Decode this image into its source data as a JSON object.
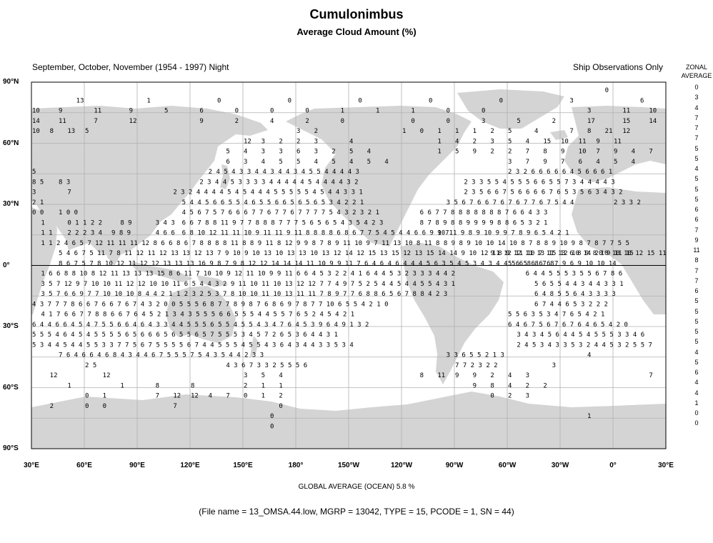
{
  "header": {
    "title": "Cumulonimbus",
    "subtitle": "Average Cloud Amount (%)",
    "season": "September, October, November (1954 - 1997) Night",
    "source": "Ship Observations Only"
  },
  "zonal": {
    "heading_1": "ZONAL",
    "heading_2": "AVERAGE",
    "values": [
      "0",
      "3",
      "4",
      "7",
      "7",
      "7",
      "5",
      "5",
      "4",
      "5",
      "5",
      "5",
      "6",
      "6",
      "7",
      "9",
      "11",
      "8",
      "7",
      "7",
      "6",
      "5",
      "5",
      "5",
      "5",
      "5",
      "4",
      "5",
      "6",
      "4",
      "4",
      "1",
      "0",
      "0"
    ]
  },
  "axes": {
    "lat_labels": [
      "90°N",
      "60°N",
      "30°N",
      "0°",
      "30°S",
      "60°S",
      "90°S"
    ],
    "lon_labels": [
      "30°E",
      "60°E",
      "90°E",
      "120°E",
      "150°E",
      "180°",
      "150°W",
      "120°W",
      "90°W",
      "60°W",
      "30°W",
      "0°",
      "30°E"
    ]
  },
  "footer": {
    "global_average": "GLOBAL AVERAGE (OCEAN)   5.8 %",
    "file_info": "(File name = 13_OMSA.44.low, MGRP = 13042, TYPE = 15, PCODE = 1, SN = 44)"
  },
  "colors": {
    "land": "#d4d4d4",
    "grid": "#b0b0b0",
    "frame": "#000000"
  },
  "grid_values": [
    {
      "row": 0,
      "text": "0",
      "col": 65
    },
    {
      "row": 1,
      "text": "13",
      "col": 5
    },
    {
      "row": 1,
      "text": "1",
      "col": 13
    },
    {
      "row": 1,
      "text": "0",
      "col": 21
    },
    {
      "row": 1,
      "text": "0",
      "col": 29
    },
    {
      "row": 1,
      "text": "0",
      "col": 37
    },
    {
      "row": 1,
      "text": "0",
      "col": 45
    },
    {
      "row": 1,
      "text": "0",
      "col": 53
    },
    {
      "row": 1,
      "text": "3",
      "col": 61
    },
    {
      "row": 1,
      "text": "6",
      "col": 69
    },
    {
      "row": 2,
      "text": "10",
      "col": 0
    },
    {
      "row": 2,
      "text": "9",
      "col": 3
    },
    {
      "row": 2,
      "text": "11",
      "col": 7
    },
    {
      "row": 2,
      "text": "9",
      "col": 11
    },
    {
      "row": 2,
      "text": "5",
      "col": 15
    },
    {
      "row": 2,
      "text": "6",
      "col": 19
    },
    {
      "row": 2,
      "text": "0",
      "col": 23
    },
    {
      "row": 2,
      "text": "0",
      "col": 27
    },
    {
      "row": 2,
      "text": "0",
      "col": 31
    },
    {
      "row": 2,
      "text": "1",
      "col": 35
    },
    {
      "row": 2,
      "text": "1",
      "col": 39
    },
    {
      "row": 2,
      "text": "1",
      "col": 43
    },
    {
      "row": 2,
      "text": "0",
      "col": 47
    },
    {
      "row": 2,
      "text": "0",
      "col": 51
    },
    {
      "row": 2,
      "text": "3",
      "col": 63
    },
    {
      "row": 2,
      "text": "11",
      "col": 67
    },
    {
      "row": 2,
      "text": "10",
      "col": 70
    },
    {
      "row": 3,
      "text": "14",
      "col": 0
    },
    {
      "row": 3,
      "text": "11",
      "col": 3
    },
    {
      "row": 3,
      "text": "7",
      "col": 7
    },
    {
      "row": 3,
      "text": "12",
      "col": 11
    },
    {
      "row": 3,
      "text": "9",
      "col": 19
    },
    {
      "row": 3,
      "text": "2",
      "col": 23
    },
    {
      "row": 3,
      "text": "4",
      "col": 27
    },
    {
      "row": 3,
      "text": "2",
      "col": 31
    },
    {
      "row": 3,
      "text": "0",
      "col": 35
    },
    {
      "row": 3,
      "text": "0",
      "col": 43
    },
    {
      "row": 3,
      "text": "0",
      "col": 47
    },
    {
      "row": 3,
      "text": "3",
      "col": 51
    },
    {
      "row": 3,
      "text": "5",
      "col": 55
    },
    {
      "row": 3,
      "text": "2",
      "col": 59
    },
    {
      "row": 3,
      "text": "17",
      "col": 63
    },
    {
      "row": 3,
      "text": "15",
      "col": 67
    },
    {
      "row": 3,
      "text": "14",
      "col": 70
    },
    {
      "row": 4,
      "text": "10",
      "col": 0
    },
    {
      "row": 4,
      "text": "8",
      "col": 2
    },
    {
      "row": 4,
      "text": "13",
      "col": 4
    },
    {
      "row": 4,
      "text": "5",
      "col": 6
    },
    {
      "row": 4,
      "text": "3",
      "col": 30
    },
    {
      "row": 4,
      "text": "2",
      "col": 32
    },
    {
      "row": 4,
      "text": "1",
      "col": 42
    },
    {
      "row": 4,
      "text": "0",
      "col": 44
    },
    {
      "row": 4,
      "text": "1",
      "col": 46
    },
    {
      "row": 4,
      "text": "1",
      "col": 48
    },
    {
      "row": 4,
      "text": "1",
      "col": 50
    },
    {
      "row": 4,
      "text": "2",
      "col": 52
    },
    {
      "row": 4,
      "text": "5",
      "col": 54
    },
    {
      "row": 4,
      "text": "4",
      "col": 57
    },
    {
      "row": 4,
      "text": "7",
      "col": 61
    },
    {
      "row": 4,
      "text": "8",
      "col": 63
    },
    {
      "row": 4,
      "text": "21",
      "col": 65
    },
    {
      "row": 4,
      "text": "12",
      "col": 67
    },
    {
      "row": 5,
      "text": "12",
      "col": 24
    },
    {
      "row": 5,
      "text": "3",
      "col": 26
    },
    {
      "row": 5,
      "text": "2",
      "col": 28
    },
    {
      "row": 5,
      "text": "2",
      "col": 30
    },
    {
      "row": 5,
      "text": "3",
      "col": 32
    },
    {
      "row": 5,
      "text": "4",
      "col": 36
    },
    {
      "row": 5,
      "text": "1",
      "col": 46
    },
    {
      "row": 5,
      "text": "4",
      "col": 48
    },
    {
      "row": 5,
      "text": "2",
      "col": 50
    },
    {
      "row": 5,
      "text": "3",
      "col": 52
    },
    {
      "row": 5,
      "text": "5",
      "col": 54
    },
    {
      "row": 5,
      "text": "4",
      "col": 56
    },
    {
      "row": 5,
      "text": "15",
      "col": 58
    },
    {
      "row": 5,
      "text": "10",
      "col": 60
    },
    {
      "row": 5,
      "text": "11",
      "col": 62
    },
    {
      "row": 5,
      "text": "9",
      "col": 64
    },
    {
      "row": 5,
      "text": "11",
      "col": 66
    },
    {
      "row": 6,
      "text": "5",
      "col": 22
    },
    {
      "row": 6,
      "text": "4",
      "col": 24
    },
    {
      "row": 6,
      "text": "3",
      "col": 26
    },
    {
      "row": 6,
      "text": "3",
      "col": 28
    },
    {
      "row": 6,
      "text": "6",
      "col": 30
    },
    {
      "row": 6,
      "text": "3",
      "col": 32
    },
    {
      "row": 6,
      "text": "2",
      "col": 34
    },
    {
      "row": 6,
      "text": "5",
      "col": 36
    },
    {
      "row": 6,
      "text": "4",
      "col": 38
    },
    {
      "row": 6,
      "text": "1",
      "col": 46
    },
    {
      "row": 6,
      "text": "5",
      "col": 48
    },
    {
      "row": 6,
      "text": "9",
      "col": 50
    },
    {
      "row": 6,
      "text": "2",
      "col": 52
    },
    {
      "row": 6,
      "text": "2",
      "col": 54
    },
    {
      "row": 6,
      "text": "7",
      "col": 56
    },
    {
      "row": 6,
      "text": "8",
      "col": 58
    },
    {
      "row": 6,
      "text": "9",
      "col": 60
    },
    {
      "row": 6,
      "text": "10",
      "col": 62
    },
    {
      "row": 6,
      "text": "7",
      "col": 64
    },
    {
      "row": 6,
      "text": "9",
      "col": 66
    },
    {
      "row": 6,
      "text": "4",
      "col": 68
    },
    {
      "row": 6,
      "text": "7",
      "col": 70
    },
    {
      "row": 7,
      "text": "6",
      "col": 22
    },
    {
      "row": 7,
      "text": "3",
      "col": 24
    },
    {
      "row": 7,
      "text": "4",
      "col": 26
    },
    {
      "row": 7,
      "text": "5",
      "col": 28
    },
    {
      "row": 7,
      "text": "5",
      "col": 30
    },
    {
      "row": 7,
      "text": "4",
      "col": 32
    },
    {
      "row": 7,
      "text": "5",
      "col": 34
    },
    {
      "row": 7,
      "text": "4",
      "col": 36
    },
    {
      "row": 7,
      "text": "5",
      "col": 38
    },
    {
      "row": 7,
      "text": "4",
      "col": 40
    },
    {
      "row": 7,
      "text": "3",
      "col": 54
    },
    {
      "row": 7,
      "text": "7",
      "col": 56
    },
    {
      "row": 7,
      "text": "9",
      "col": 58
    },
    {
      "row": 7,
      "text": "7",
      "col": 60
    },
    {
      "row": 7,
      "text": "6",
      "col": 62
    },
    {
      "row": 7,
      "text": "4",
      "col": 64
    },
    {
      "row": 7,
      "text": "5",
      "col": 66
    },
    {
      "row": 7,
      "text": "4",
      "col": 68
    },
    {
      "row": 8,
      "text": "5",
      "col": 0
    },
    {
      "row": 8,
      "text": "2 4 5 4 3 3 4 4 3 4 4 3 4 5 5 4 4 4 4 3",
      "col": 20
    },
    {
      "row": 8,
      "text": "2 3 2 6 6 6 6 6 4 5 6 6 6 1",
      "col": 54
    },
    {
      "row": 9,
      "text": "8 5",
      "col": 0
    },
    {
      "row": 9,
      "text": "8 3",
      "col": 3
    },
    {
      "row": 9,
      "text": "2 3 4 4 5 3 3 3 3 4 4 4 4 4 5 4 4 4 4 3 2",
      "col": 19
    },
    {
      "row": 9,
      "text": "2 3 3 5 5 4 5 5 5 6 6 5 5 7 3 4 4 4 4 3",
      "col": 49
    },
    {
      "row": 10,
      "text": "3",
      "col": 0
    },
    {
      "row": 10,
      "text": "7",
      "col": 4
    },
    {
      "row": 10,
      "text": "2 3 2 4 4 4 4 5 4 5 4 4 4 5 5 5 5 5 4 5 4 4 3 3 1",
      "col": 16
    },
    {
      "row": 10,
      "text": "2 3 5 6 6 7 5 6 6 6 6 7 6 5 3 5 6 3 4 3 2",
      "col": 49
    },
    {
      "row": 11,
      "text": "2 1",
      "col": 0
    },
    {
      "row": 11,
      "text": "5 4 4 5 6 6 5 5 4 6 5 5 6 6 5 6 5 6 5 3 4 2 2 1",
      "col": 17
    },
    {
      "row": 11,
      "text": "3 5 6 7 6 6 7 6 7 6 7 7 6 7 5 4 4",
      "col": 47
    },
    {
      "row": 11,
      "text": "2 3 3 2",
      "col": 66
    },
    {
      "row": 12,
      "text": "0 0",
      "col": 0
    },
    {
      "row": 12,
      "text": "1 0 0",
      "col": 3
    },
    {
      "row": 12,
      "text": "4 5 6 7 5 7 6 6 6 7 7 6 7 7 6 7 7 7 7 5 4 3 2 3 2 1",
      "col": 17
    },
    {
      "row": 12,
      "text": "6 6 7 7 8 8 8 8 8 8 8 7 6 6 4 3 3",
      "col": 44
    },
    {
      "row": 13,
      "text": "1",
      "col": 1
    },
    {
      "row": 13,
      "text": "0 1 1 2 2",
      "col": 4
    },
    {
      "row": 13,
      "text": "8 9",
      "col": 10
    },
    {
      "row": 13,
      "text": "3 4 3",
      "col": 14
    },
    {
      "row": 13,
      "text": "6 6 7 8 8 11 9 7 7 8 8 8 7 7 7 5 6 5 6 5 4 3 5 4 2 3",
      "col": 17
    },
    {
      "row": 13,
      "text": "8 7 8 9 8 8 9 9 9 9 8 8 6 5 3 2 1",
      "col": 44
    },
    {
      "row": 14,
      "text": "1 1",
      "col": 1
    },
    {
      "row": 14,
      "text": "2 2 2 3 4",
      "col": 4
    },
    {
      "row": 14,
      "text": "9 8 9",
      "col": 9
    },
    {
      "row": 14,
      "text": "4 6 6",
      "col": 14
    },
    {
      "row": 14,
      "text": "6 8 10 12 11 11 10 9 11 11 9 11 8 8 8 8 6 8 6 7 7 5 4 5 4 4 6 6 9 9 7",
      "col": 17
    },
    {
      "row": 14,
      "text": "10 11 9 8 9 10 9 9 7 8 9 6 5 4 2 1",
      "col": 46
    },
    {
      "row": 15,
      "text": "1 1 2 4 6 5 7 12 11 11 11 12 8 6 6 8 6 7 8 8 8 8 11 8 8 9 11 8 12 9 9 8 7 8 9 11 10 9 7 11 13 10 8 11 8 8 9 8 9 10 10 14 10 8 7 8 8 9 10 9 8 7 8 7 7 5 5",
      "col": 1
    },
    {
      "row": 16,
      "text": "5 4 6 7 5 11 7 8 11 12 11 12 13 13 12 13 7 9 10 9 10 13 10 13 13 10 13 12 14 12 15 13 15 12 13 15 14 14 9 10 12 11 12 11 10 7 11 13 6 8 9 8 10 10 10 12 15 11",
      "col": 3
    },
    {
      "row": 16,
      "text": "9 8 9 12 11 13 15 12 10 14 20 9 11 15",
      "col": 52
    },
    {
      "row": 17,
      "text": "8 6 7 5 7 8 10 12 11 12 12 13 13 13 16 9 8 7 9 8 12 12 14 14 14 11 10 9 9 11 7 6 4 6 4 6 4 4 4 5 6 3 5 4 5 3 4 3 4 4 5 6 8 8 7 8",
      "col": 3
    },
    {
      "row": 17,
      "text": "5 6 5 6 6 6 7 9 6 9 10 10 14",
      "col": 54
    },
    {
      "row": 18,
      "text": "1 6 6 8 8 10 8 12 11 13 13 13 15 8 6 11 7 10 10 9 12 11 10 9 9 11 6 6 4 5 3 2 2 4 1 6 4 4 5 3 2 3 3 3 4 4 2",
      "col": 1
    },
    {
      "row": 18,
      "text": "6 4 4 5 5 5 3 5 5 6 7 8 6",
      "col": 56
    },
    {
      "row": 19,
      "text": "3 5 7 12 9 7 10 10 11 12 12 10 10 11 6 5 4 4 3 2 9 11 10 11 10 13 12 12 7 7 4 9 7 5 2 5 4 4 5 4 4 5 5 4 3 1",
      "col": 1
    },
    {
      "row": 19,
      "text": "5 6 5 5 4 4 3 4 4 3 3 1",
      "col": 57
    },
    {
      "row": 20,
      "text": "3 5 7 6 6 9 7 7 10 10 10 8 4 4 2 1 1 2 3 2 5 3 7 8 10 10 11 10 13 11 11 7 8 9 7 7 6 8 8 6 5 6 7 8 8 4 2 3",
      "col": 1
    },
    {
      "row": 20,
      "text": "6 4 8 5 5 6 4 3 3 3 3",
      "col": 57
    },
    {
      "row": 21,
      "text": "4 3 7 7 7 8 6 6 7 6 6 7 6 7 4 3 2 0 0 5 5 5 6 8 7 7 8 9 8 7 6 8 6 9 7 8 7 7 10 6 5 5 4 2 1 0",
      "col": 0
    },
    {
      "row": 21,
      "text": "6 7 4 4 6 5 3 2 2 2",
      "col": 57
    },
    {
      "row": 22,
      "text": "4 1 7 6 6 7 7 8 8 6 6 7 6 4 5 2 1 3 4 3 5 5 5 6 6 5 5 5 4 4 5 5 7 6 5 2 4 5 4 2 1",
      "col": 1
    },
    {
      "row": 22,
      "text": "5 5 6 3 5 3 4 7 6 5 4 2 1",
      "col": 54
    },
    {
      "row": 23,
      "text": "6 4 4 6 6 4 5 4 7 5 5 6 6 4 6 4 3 3 4 4 5 5 5 6 5 5 4 5 5 4 3 4 7 6 4 5 3 9 6 4 9 1 3 2",
      "col": 0
    },
    {
      "row": 23,
      "text": "6 4 6 7 5 6 7 6 7 6 4 6 5 4 2 0",
      "col": 54
    },
    {
      "row": 24,
      "text": "5 5 5 4 6 4 5 4 5 5 5 5 6 5 6 6 6 5 6 5 5 6 5 7 5 5 5 3 4 5 7 2 6 5 3 6 4 4 3 1",
      "col": 0
    },
    {
      "row": 24,
      "text": "3 4 3 4 5 6 4 4 5 4 5 5 5 3 3 4 6",
      "col": 55
    },
    {
      "row": 25,
      "text": "5 3 4 4 5 4 4 5 5 3 3 7 7 5 6 7 5 5 5 5 6 7 4 4 5 5 5 4 5 5 4 3 6 4 3 4 4 3 3 5 3 4",
      "col": 0
    },
    {
      "row": 25,
      "text": "2 4 5 3 4 3 3 5 3 2 4 4 5 3 2 5 5 7",
      "col": 55
    },
    {
      "row": 26,
      "text": "7 6 4 6 6 4 6 8 4 3 4 4 6 7 5 5 5 7 5 4 3 5 4 4 2 3 3",
      "col": 3
    },
    {
      "row": 26,
      "text": "3 3 6 5 5 2 1 3",
      "col": 47
    },
    {
      "row": 26,
      "text": "4",
      "col": 63
    },
    {
      "row": 27,
      "text": "2 5",
      "col": 6
    },
    {
      "row": 27,
      "text": "4 3 6 7 3 3 2 5 5 5 6",
      "col": 22
    },
    {
      "row": 27,
      "text": "7 7 2 3 2 2",
      "col": 48
    },
    {
      "row": 27,
      "text": "3",
      "col": 59
    },
    {
      "row": 28,
      "text": "12",
      "col": 2
    },
    {
      "row": 28,
      "text": "12",
      "col": 8
    },
    {
      "row": 28,
      "text": "3",
      "col": 24
    },
    {
      "row": 28,
      "text": "5",
      "col": 26
    },
    {
      "row": 28,
      "text": "4",
      "col": 28
    },
    {
      "row": 28,
      "text": "8",
      "col": 44
    },
    {
      "row": 28,
      "text": "11",
      "col": 46
    },
    {
      "row": 28,
      "text": "9",
      "col": 48
    },
    {
      "row": 28,
      "text": "9",
      "col": 50
    },
    {
      "row": 28,
      "text": "2",
      "col": 52
    },
    {
      "row": 28,
      "text": "4",
      "col": 54
    },
    {
      "row": 28,
      "text": "3",
      "col": 56
    },
    {
      "row": 28,
      "text": "7",
      "col": 70
    },
    {
      "row": 29,
      "text": "1",
      "col": 4
    },
    {
      "row": 29,
      "text": "1",
      "col": 10
    },
    {
      "row": 29,
      "text": "8",
      "col": 14
    },
    {
      "row": 29,
      "text": "8",
      "col": 18
    },
    {
      "row": 29,
      "text": "2",
      "col": 24
    },
    {
      "row": 29,
      "text": "1",
      "col": 26
    },
    {
      "row": 29,
      "text": "1",
      "col": 28
    },
    {
      "row": 29,
      "text": "9",
      "col": 50
    },
    {
      "row": 29,
      "text": "8",
      "col": 52
    },
    {
      "row": 29,
      "text": "4",
      "col": 54
    },
    {
      "row": 29,
      "text": "2",
      "col": 56
    },
    {
      "row": 29,
      "text": "2",
      "col": 58
    },
    {
      "row": 30,
      "text": "0",
      "col": 6
    },
    {
      "row": 30,
      "text": "1",
      "col": 8
    },
    {
      "row": 30,
      "text": "7",
      "col": 14
    },
    {
      "row": 30,
      "text": "12",
      "col": 16
    },
    {
      "row": 30,
      "text": "12",
      "col": 18
    },
    {
      "row": 30,
      "text": "4",
      "col": 20
    },
    {
      "row": 30,
      "text": "7",
      "col": 22
    },
    {
      "row": 30,
      "text": "0",
      "col": 24
    },
    {
      "row": 30,
      "text": "1",
      "col": 26
    },
    {
      "row": 30,
      "text": "2",
      "col": 28
    },
    {
      "row": 30,
      "text": "0",
      "col": 52
    },
    {
      "row": 30,
      "text": "2",
      "col": 54
    },
    {
      "row": 30,
      "text": "3",
      "col": 56
    },
    {
      "row": 31,
      "text": "2",
      "col": 2
    },
    {
      "row": 31,
      "text": "0",
      "col": 6
    },
    {
      "row": 31,
      "text": "0",
      "col": 8
    },
    {
      "row": 31,
      "text": "7",
      "col": 16
    },
    {
      "row": 31,
      "text": "0",
      "col": 28
    },
    {
      "row": 32,
      "text": "0",
      "col": 27
    },
    {
      "row": 32,
      "text": "1",
      "col": 63
    },
    {
      "row": 33,
      "text": "0",
      "col": 27
    }
  ]
}
